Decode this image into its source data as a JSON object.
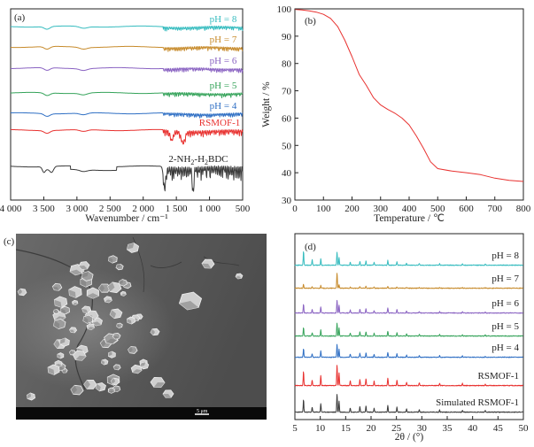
{
  "colors": {
    "black": "#3a3a3a",
    "red": "#e8312f",
    "blue": "#2f6fc4",
    "green": "#35a35a",
    "purple": "#8a63c2",
    "orange": "#c78b2c",
    "cyan": "#36bcbf"
  },
  "sem": {
    "panel_label": "(c)",
    "scale_label": "5 μm"
  },
  "chart_data": [
    {
      "panel": "(a)",
      "type": "line",
      "xlabel": "Wavenumber / cm⁻¹",
      "ylabel": "",
      "xlim": [
        4000,
        500
      ],
      "xticks": [
        "4 000",
        "3 500",
        "3 000",
        "2 500",
        "2 000",
        "1 500",
        "1 000",
        "500"
      ],
      "xtick_values": [
        4000,
        3500,
        3000,
        2500,
        2000,
        1500,
        1000,
        500
      ],
      "series": [
        {
          "name": "2-NH₂-H₂BDC",
          "color": "black",
          "offset": 0.0
        },
        {
          "name": "RSMOF-1",
          "color": "red",
          "offset": 1.0
        },
        {
          "name": "pH = 4",
          "color": "blue",
          "offset": 2.0
        },
        {
          "name": "pH = 5",
          "color": "green",
          "offset": 2.7
        },
        {
          "name": "pH = 6",
          "color": "purple",
          "offset": 3.5
        },
        {
          "name": "pH = 7",
          "color": "orange",
          "offset": 4.2
        },
        {
          "name": "pH = 8",
          "color": "cyan",
          "offset": 4.9
        }
      ],
      "label_sub": {
        "pre": "2-NH",
        "s1": "2",
        "mid": "-H",
        "s2": "2",
        "post": "BDC"
      }
    },
    {
      "panel": "(b)",
      "type": "line",
      "xlabel": "Temperature / ℃",
      "ylabel": "Weight / %",
      "xlim": [
        0,
        800
      ],
      "ylim": [
        30,
        100
      ],
      "xticks": [
        0,
        100,
        200,
        300,
        400,
        500,
        600,
        700,
        800
      ],
      "yticks": [
        30,
        40,
        50,
        60,
        70,
        80,
        90,
        100
      ],
      "series": [
        {
          "name": "",
          "color": "red",
          "x": [
            0,
            25,
            50,
            75,
            100,
            125,
            150,
            175,
            200,
            225,
            250,
            275,
            300,
            325,
            350,
            375,
            400,
            425,
            450,
            475,
            500,
            550,
            600,
            650,
            700,
            750,
            800
          ],
          "y": [
            99.8,
            99.6,
            99.3,
            98.8,
            98.0,
            96.5,
            93.5,
            88.5,
            82.5,
            76.0,
            72.0,
            67.5,
            64.8,
            63.2,
            61.8,
            60.0,
            57.5,
            53.5,
            49.0,
            44.0,
            41.5,
            40.6,
            40.0,
            39.3,
            38.0,
            37.2,
            36.8
          ]
        }
      ]
    },
    {
      "panel": "(d)",
      "type": "line",
      "xlabel": "2θ / (°)",
      "ylabel": "",
      "xlim": [
        5,
        50
      ],
      "xticks": [
        5,
        10,
        15,
        20,
        25,
        30,
        35,
        40,
        45,
        50
      ],
      "series": [
        {
          "name": "Simulated RSMOF-1",
          "color": "black",
          "offset": 0.0
        },
        {
          "name": "RSMOF-1",
          "color": "red",
          "offset": 1.0
        },
        {
          "name": "pH = 4",
          "color": "blue",
          "offset": 2.0
        },
        {
          "name": "pH = 5",
          "color": "green",
          "offset": 2.8
        },
        {
          "name": "pH = 6",
          "color": "purple",
          "offset": 3.6
        },
        {
          "name": "pH = 7",
          "color": "orange",
          "offset": 4.4
        },
        {
          "name": "pH = 8",
          "color": "cyan",
          "offset": 5.2
        }
      ]
    }
  ]
}
